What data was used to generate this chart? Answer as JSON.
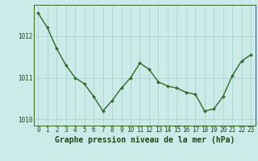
{
  "x": [
    0,
    1,
    2,
    3,
    4,
    5,
    6,
    7,
    8,
    9,
    10,
    11,
    12,
    13,
    14,
    15,
    16,
    17,
    18,
    19,
    20,
    21,
    22,
    23
  ],
  "y": [
    1012.55,
    1012.2,
    1011.7,
    1011.3,
    1011.0,
    1010.85,
    1010.55,
    1010.2,
    1010.45,
    1010.75,
    1011.0,
    1011.35,
    1011.2,
    1010.9,
    1010.8,
    1010.75,
    1010.65,
    1010.6,
    1010.2,
    1010.25,
    1010.55,
    1011.05,
    1011.4,
    1011.55
  ],
  "line_color": "#2d6a2d",
  "marker": "D",
  "marker_size": 2.0,
  "background_color": "#cceae7",
  "grid_color": "#aad4d0",
  "xlabel": "Graphe pression niveau de la mer (hPa)",
  "xlabel_fontsize": 7,
  "xlabel_color": "#1a4a1a",
  "tick_color": "#1a4a1a",
  "tick_fontsize": 5.5,
  "ylim": [
    1009.85,
    1012.75
  ],
  "yticks": [
    1010,
    1011,
    1012
  ],
  "line_width": 1.0,
  "spine_color": "#2d6a2d"
}
